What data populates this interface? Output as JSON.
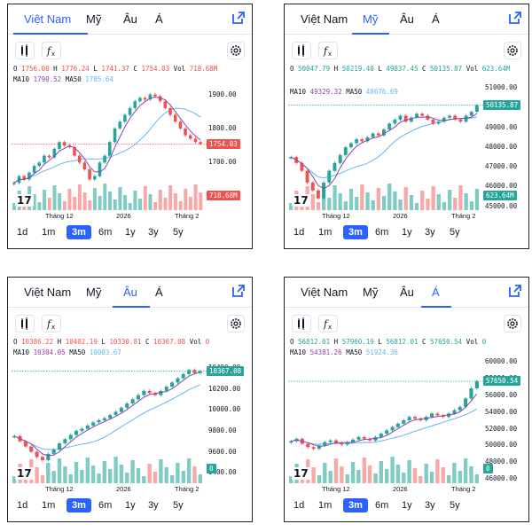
{
  "tabs": [
    "Việt Nam",
    "Mỹ",
    "Âu",
    "Á"
  ],
  "ranges": [
    "1d",
    "1m",
    "3m",
    "6m",
    "1y",
    "3y",
    "5y"
  ],
  "colors": {
    "up": "#26a69a",
    "down": "#ef5350",
    "accent": "#2962ff",
    "ma10": "#8e44ad",
    "ma50": "#64b5f6"
  },
  "icons": {
    "external": "external-link-icon",
    "candle": "candlestick-icon",
    "fx": "indicator-fx-icon",
    "gear": "gear-icon"
  },
  "panels": [
    {
      "active_tab": 0,
      "ohlc": {
        "o": "1756.00",
        "h": "1776.24",
        "l": "1741.37",
        "c": "1754.03",
        "vol": "718.68M"
      },
      "ma10": "1790.52",
      "ma50": "1785.64",
      "price_labels": [
        "1900.00",
        "1800.00",
        "1700.00",
        "1600.00"
      ],
      "last_price": "1754.03",
      "last_vol": "718.68M",
      "x_labels": [
        "Tháng 12",
        "2026",
        "Tháng 2"
      ],
      "chart_data": {
        "type": "candlestick",
        "ylim": [
          1560,
          1930
        ],
        "points": [
          1640,
          1660,
          1650,
          1670,
          1690,
          1700,
          1720,
          1715,
          1740,
          1760,
          1750,
          1745,
          1720,
          1700,
          1680,
          1650,
          1660,
          1700,
          1720,
          1760,
          1800,
          1820,
          1840,
          1860,
          1880,
          1890,
          1885,
          1900,
          1895,
          1880,
          1860,
          1840,
          1820,
          1800,
          1780,
          1770,
          1760,
          1754
        ]
      }
    },
    {
      "active_tab": 1,
      "ohlc": {
        "o": "50047.79",
        "h": "50219.40",
        "l": "49837.45",
        "c": "50135.87",
        "vol": "623.64M"
      },
      "ma10": "49329.32",
      "ma50": "48676.69",
      "price_labels": [
        "51000.00",
        "50000.00",
        "49000.00",
        "48000.00",
        "47000.00",
        "46000.00",
        "45000.00"
      ],
      "last_price": "50135.87",
      "last_vol": "623.64M",
      "x_labels": [
        "Tháng 12",
        "2026",
        "Tháng 2"
      ],
      "chart_data": {
        "type": "candlestick",
        "ylim": [
          44800,
          51200
        ],
        "points": [
          47500,
          47200,
          46800,
          46200,
          45800,
          45400,
          46200,
          46800,
          47200,
          47600,
          48000,
          48200,
          48400,
          48300,
          48500,
          48700,
          48600,
          48900,
          49200,
          49400,
          49600,
          49300,
          49500,
          49700,
          49600,
          49400,
          49200,
          49300,
          49500,
          49600,
          49400,
          49300,
          49600,
          49800,
          50135
        ]
      }
    },
    {
      "active_tab": 2,
      "ohlc": {
        "o": "10386.22",
        "h": "10402.19",
        "l": "10330.81",
        "c": "10367.08",
        "vol": "0"
      },
      "ma10": "10304.05",
      "ma50": "10003.67",
      "price_labels": [
        "10400.00",
        "10200.00",
        "10000.00",
        "9800.00",
        "9600.00",
        "9400.00"
      ],
      "last_price": "10367.08",
      "last_vol": "0",
      "x_labels": [
        "Tháng 12",
        "2026",
        "Tháng 2"
      ],
      "chart_data": {
        "type": "candlestick",
        "ylim": [
          9300,
          10500
        ],
        "points": [
          9750,
          9700,
          9650,
          9600,
          9550,
          9520,
          9580,
          9620,
          9680,
          9720,
          9760,
          9800,
          9820,
          9850,
          9880,
          9900,
          9920,
          9950,
          9980,
          10020,
          10060,
          10100,
          10140,
          10180,
          10160,
          10140,
          10180,
          10220,
          10260,
          10300,
          10340,
          10380,
          10350,
          10367
        ]
      }
    },
    {
      "active_tab": 3,
      "ohlc": {
        "o": "56812.01",
        "h": "57960.19",
        "l": "56812.01",
        "c": "57650.54",
        "vol": "0"
      },
      "ma10": "54381.26",
      "ma50": "51924.36",
      "price_labels": [
        "60000.00",
        "58000.00",
        "56000.00",
        "54000.00",
        "52000.00",
        "50000.00",
        "48000.00",
        "46000.00"
      ],
      "last_price": "57650.54",
      "last_vol": "0",
      "x_labels": [
        "Tháng 12",
        "2026",
        "Tháng 2"
      ],
      "chart_data": {
        "type": "candlestick",
        "ylim": [
          45500,
          60500
        ],
        "points": [
          50500,
          50800,
          50200,
          49800,
          49600,
          50000,
          50400,
          50600,
          50300,
          50100,
          50400,
          50700,
          51000,
          50800,
          50600,
          51000,
          51400,
          51800,
          52200,
          52600,
          53000,
          53400,
          53200,
          53000,
          53400,
          53800,
          53600,
          53400,
          53800,
          54200,
          54600,
          55600,
          56800,
          57650
        ]
      }
    }
  ]
}
